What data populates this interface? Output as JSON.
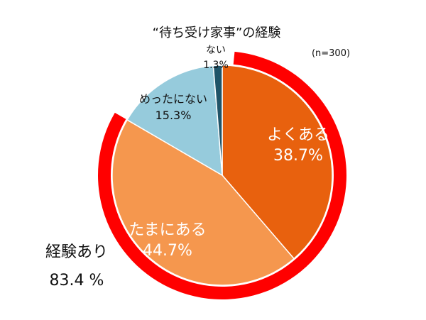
{
  "chart_data": {
    "type": "pie",
    "title": "“待ち受け家事”の経験",
    "note": "(n=300)",
    "slices": [
      {
        "label": "よくある",
        "value": 38.7,
        "value_text": "38.7%",
        "color": "#e8610e"
      },
      {
        "label": "たまにある",
        "value": 44.7,
        "value_text": "44.7%",
        "color": "#f5974e"
      },
      {
        "label": "めったにない",
        "value": 15.3,
        "value_text": "15.3%",
        "color": "#96cbdc"
      },
      {
        "label": "ない",
        "value": 1.3,
        "value_text": "1.3%",
        "color": "#1f5468"
      }
    ],
    "highlight": {
      "label": "経験あり",
      "value_text": "83.4 %",
      "value": 83.4,
      "color": "#ff0000"
    }
  }
}
